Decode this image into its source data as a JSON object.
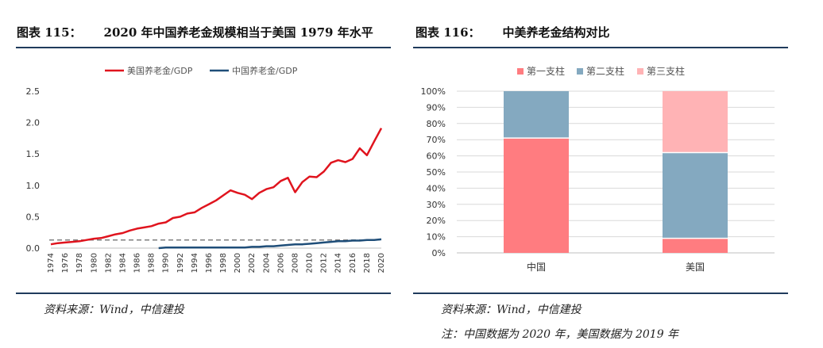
{
  "left_figure": {
    "number": "图表 115：",
    "title": "2020 年中国养老金规模相当于美国 1979 年水平",
    "source": "资料来源：Wind，中信建投"
  },
  "right_figure": {
    "number": "图表 116：",
    "title": "中美养老金结构对比",
    "source": "资料来源：Wind，中信建投",
    "note": "注：中国数据为 2020 年，美国数据为 2019 年"
  },
  "colors": {
    "us_line": "#e0141e",
    "cn_line": "#1f4e79",
    "pillar1": "#ff7c80",
    "pillar2": "#84a9c0",
    "pillar3": "#ffb3b5",
    "rule": "#1f3b5c"
  },
  "chart_data": [
    {
      "type": "line",
      "legend_position": "top",
      "x": [
        1974,
        1975,
        1976,
        1977,
        1978,
        1979,
        1980,
        1981,
        1982,
        1983,
        1984,
        1985,
        1986,
        1987,
        1988,
        1989,
        1990,
        1991,
        1992,
        1993,
        1994,
        1995,
        1996,
        1997,
        1998,
        1999,
        2000,
        2001,
        2002,
        2003,
        2004,
        2005,
        2006,
        2007,
        2008,
        2009,
        2010,
        2011,
        2012,
        2013,
        2014,
        2015,
        2016,
        2017,
        2018,
        2019,
        2020
      ],
      "x_ticks": [
        "1974",
        "1976",
        "1978",
        "1980",
        "1982",
        "1984",
        "1986",
        "1988",
        "1990",
        "1992",
        "1994",
        "1996",
        "1998",
        "2000",
        "2002",
        "2004",
        "2006",
        "2008",
        "2010",
        "2012",
        "2014",
        "2016",
        "2018",
        "2020"
      ],
      "ylim": [
        0,
        2.5
      ],
      "y_ticks": [
        "0.0",
        "0.5",
        "1.0",
        "1.5",
        "2.0",
        "2.5"
      ],
      "reference_line": {
        "y": 0.13,
        "style": "dashed",
        "color": "#7f7f7f"
      },
      "series": [
        {
          "name": "美国养老金/GDP",
          "color": "#e0141e",
          "values": [
            0.06,
            0.08,
            0.09,
            0.1,
            0.11,
            0.13,
            0.15,
            0.16,
            0.19,
            0.22,
            0.24,
            0.28,
            0.31,
            0.33,
            0.35,
            0.39,
            0.41,
            0.48,
            0.5,
            0.55,
            0.57,
            0.64,
            0.7,
            0.76,
            0.84,
            0.92,
            0.88,
            0.85,
            0.78,
            0.88,
            0.94,
            0.97,
            1.07,
            1.12,
            0.89,
            1.05,
            1.14,
            1.13,
            1.22,
            1.36,
            1.4,
            1.37,
            1.42,
            1.59,
            1.48,
            1.7,
            1.91
          ]
        },
        {
          "name": "中国养老金/GDP",
          "color": "#1f4e79",
          "values": [
            null,
            null,
            null,
            null,
            null,
            null,
            null,
            null,
            null,
            null,
            null,
            null,
            null,
            null,
            null,
            0.0,
            0.01,
            0.01,
            0.01,
            0.01,
            0.01,
            0.01,
            0.01,
            0.01,
            0.01,
            0.01,
            0.01,
            0.01,
            0.02,
            0.02,
            0.03,
            0.03,
            0.04,
            0.05,
            0.06,
            0.06,
            0.07,
            0.08,
            0.09,
            0.1,
            0.11,
            0.11,
            0.12,
            0.12,
            0.13,
            0.13,
            0.14
          ]
        }
      ]
    },
    {
      "type": "bar",
      "stacked": true,
      "legend_position": "top",
      "categories": [
        "中国",
        "美国"
      ],
      "ylim": [
        0,
        100
      ],
      "y_ticks": [
        "0%",
        "10%",
        "20%",
        "30%",
        "40%",
        "50%",
        "60%",
        "70%",
        "80%",
        "90%",
        "100%"
      ],
      "series": [
        {
          "name": "第一支柱",
          "color": "#ff7c80",
          "values": [
            71,
            9
          ]
        },
        {
          "name": "第二支柱",
          "color": "#84a9c0",
          "values": [
            29,
            53
          ]
        },
        {
          "name": "第三支柱",
          "color": "#ffb3b5",
          "values": [
            0,
            38
          ]
        }
      ]
    }
  ]
}
